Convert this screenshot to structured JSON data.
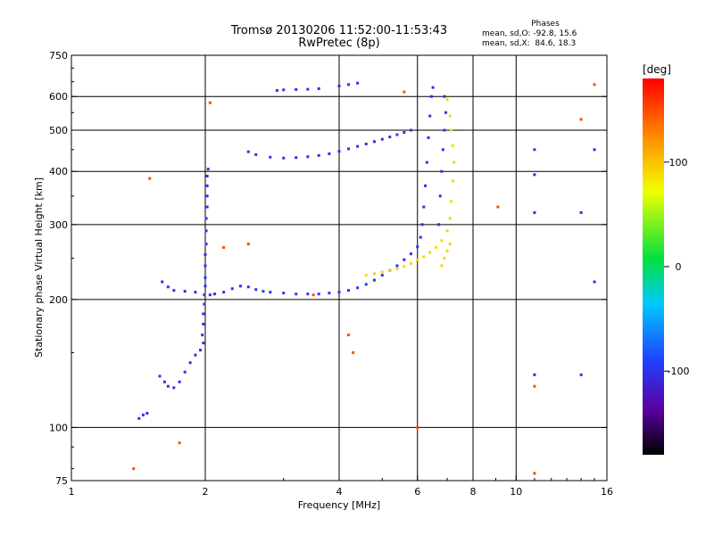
{
  "title": "Tromsø 20130206 11:52:00-11:53:43",
  "subtitle": "RwPretec (8p)",
  "stats": {
    "header": "Phases",
    "line_o": "mean, sd,O: -92.8, 15.6",
    "line_x": "mean, sd,X:  84.6, 18.3"
  },
  "colorbar": {
    "unit_label": "[deg]",
    "ticks": [
      "100",
      "0",
      "-100"
    ],
    "tick_values": [
      100,
      0,
      -100
    ],
    "range": [
      -180,
      180
    ]
  },
  "chart_data": {
    "type": "scatter",
    "xlabel": "Frequency [MHz]",
    "ylabel": "Stationary phase Virtual Height [km]",
    "xscale": "log",
    "yscale": "log",
    "xlim": [
      1,
      16
    ],
    "ylim": [
      75,
      750
    ],
    "xticks": [
      1,
      2,
      4,
      6,
      8,
      10,
      16
    ],
    "xtick_labels": [
      "1",
      "2",
      "4",
      "6",
      "8",
      "10",
      "16"
    ],
    "yticks": [
      75,
      100,
      200,
      300,
      400,
      500,
      600,
      750
    ],
    "ytick_labels": [
      "75",
      "100",
      "200",
      "300",
      "400",
      "500",
      "600",
      "750"
    ],
    "xgrid": [
      2,
      4,
      6,
      8,
      10
    ],
    "ygrid": [
      100,
      200,
      300,
      400,
      500,
      600
    ],
    "series": [
      {
        "mode": "O",
        "phase_deg": -100,
        "points": [
          [
            1.42,
            105
          ],
          [
            1.45,
            107
          ],
          [
            1.48,
            108
          ],
          [
            1.58,
            132
          ],
          [
            1.62,
            128
          ],
          [
            1.65,
            125
          ],
          [
            1.7,
            124
          ],
          [
            1.75,
            128
          ],
          [
            1.8,
            135
          ],
          [
            1.85,
            142
          ],
          [
            1.9,
            148
          ],
          [
            1.95,
            152
          ],
          [
            1.98,
            158
          ],
          [
            1.97,
            165
          ],
          [
            1.98,
            175
          ],
          [
            1.98,
            185
          ],
          [
            1.99,
            195
          ],
          [
            1.99,
            205
          ],
          [
            2.0,
            215
          ],
          [
            2.0,
            225
          ],
          [
            2.0,
            240
          ],
          [
            2.0,
            255
          ],
          [
            2.01,
            270
          ],
          [
            2.01,
            290
          ],
          [
            2.01,
            310
          ],
          [
            2.02,
            330
          ],
          [
            2.02,
            350
          ],
          [
            2.02,
            370
          ],
          [
            2.02,
            390
          ],
          [
            2.03,
            405
          ],
          [
            1.6,
            220
          ],
          [
            1.65,
            214
          ],
          [
            1.7,
            210
          ],
          [
            1.8,
            209
          ],
          [
            1.9,
            208
          ],
          [
            2.05,
            205
          ],
          [
            2.1,
            206
          ],
          [
            2.2,
            208
          ],
          [
            2.3,
            212
          ],
          [
            2.4,
            215
          ],
          [
            2.5,
            214
          ],
          [
            2.6,
            211
          ],
          [
            2.7,
            209
          ],
          [
            2.8,
            208
          ],
          [
            3.0,
            207
          ],
          [
            3.2,
            206
          ],
          [
            3.4,
            206
          ],
          [
            3.6,
            206
          ],
          [
            3.8,
            207
          ],
          [
            4.0,
            208
          ],
          [
            4.2,
            210
          ],
          [
            4.4,
            213
          ],
          [
            4.6,
            217
          ],
          [
            4.8,
            222
          ],
          [
            5.0,
            228
          ],
          [
            5.2,
            234
          ],
          [
            5.4,
            240
          ],
          [
            5.6,
            248
          ],
          [
            5.8,
            256
          ],
          [
            6.0,
            266
          ],
          [
            6.1,
            280
          ],
          [
            6.15,
            300
          ],
          [
            6.2,
            330
          ],
          [
            6.25,
            370
          ],
          [
            6.3,
            420
          ],
          [
            6.35,
            480
          ],
          [
            6.4,
            540
          ],
          [
            6.45,
            600
          ],
          [
            6.5,
            630
          ],
          [
            2.5,
            445
          ],
          [
            2.6,
            438
          ],
          [
            2.8,
            432
          ],
          [
            3.0,
            430
          ],
          [
            3.2,
            431
          ],
          [
            3.4,
            433
          ],
          [
            3.6,
            436
          ],
          [
            3.8,
            440
          ],
          [
            4.0,
            446
          ],
          [
            4.2,
            452
          ],
          [
            4.4,
            458
          ],
          [
            4.6,
            464
          ],
          [
            4.8,
            470
          ],
          [
            5.0,
            476
          ],
          [
            5.2,
            482
          ],
          [
            5.4,
            488
          ],
          [
            5.6,
            494
          ],
          [
            5.8,
            500
          ],
          [
            2.9,
            620
          ],
          [
            3.0,
            622
          ],
          [
            3.2,
            623
          ],
          [
            3.4,
            624
          ],
          [
            3.6,
            626
          ],
          [
            4.0,
            635
          ],
          [
            4.2,
            640
          ],
          [
            4.4,
            645
          ],
          [
            6.7,
            300
          ],
          [
            6.75,
            350
          ],
          [
            6.8,
            400
          ],
          [
            6.85,
            450
          ],
          [
            6.9,
            500
          ],
          [
            6.95,
            550
          ],
          [
            6.9,
            600
          ],
          [
            11.0,
            450
          ],
          [
            11.0,
            393
          ],
          [
            11.0,
            320
          ],
          [
            11.0,
            133
          ],
          [
            14.0,
            320
          ],
          [
            14.0,
            133
          ],
          [
            15.0,
            220
          ],
          [
            15.0,
            450
          ]
        ]
      },
      {
        "mode": "X",
        "phase_deg": 90,
        "points": [
          [
            4.6,
            228
          ],
          [
            4.8,
            230
          ],
          [
            5.0,
            232
          ],
          [
            5.2,
            234
          ],
          [
            5.4,
            236
          ],
          [
            5.6,
            239
          ],
          [
            5.8,
            243
          ],
          [
            6.0,
            248
          ],
          [
            6.2,
            252
          ],
          [
            6.4,
            258
          ],
          [
            6.6,
            265
          ],
          [
            6.8,
            275
          ],
          [
            7.0,
            290
          ],
          [
            7.1,
            310
          ],
          [
            7.15,
            340
          ],
          [
            7.2,
            380
          ],
          [
            7.25,
            420
          ],
          [
            7.2,
            460
          ],
          [
            7.15,
            500
          ],
          [
            7.1,
            540
          ],
          [
            7.0,
            590
          ],
          [
            6.8,
            240
          ],
          [
            6.9,
            250
          ],
          [
            7.0,
            260
          ],
          [
            7.1,
            270
          ]
        ]
      },
      {
        "mode": "other",
        "phase_deg": 150,
        "points": [
          [
            1.38,
            80
          ],
          [
            1.75,
            92
          ],
          [
            2.05,
            580
          ],
          [
            2.2,
            265
          ],
          [
            2.5,
            270
          ],
          [
            3.5,
            205
          ],
          [
            4.2,
            165
          ],
          [
            4.3,
            150
          ],
          [
            5.6,
            615
          ],
          [
            6.0,
            100
          ],
          [
            9.1,
            330
          ],
          [
            11.0,
            125
          ],
          [
            11.0,
            78
          ],
          [
            14.0,
            530
          ],
          [
            15.0,
            640
          ],
          [
            1.5,
            385
          ]
        ]
      }
    ]
  }
}
